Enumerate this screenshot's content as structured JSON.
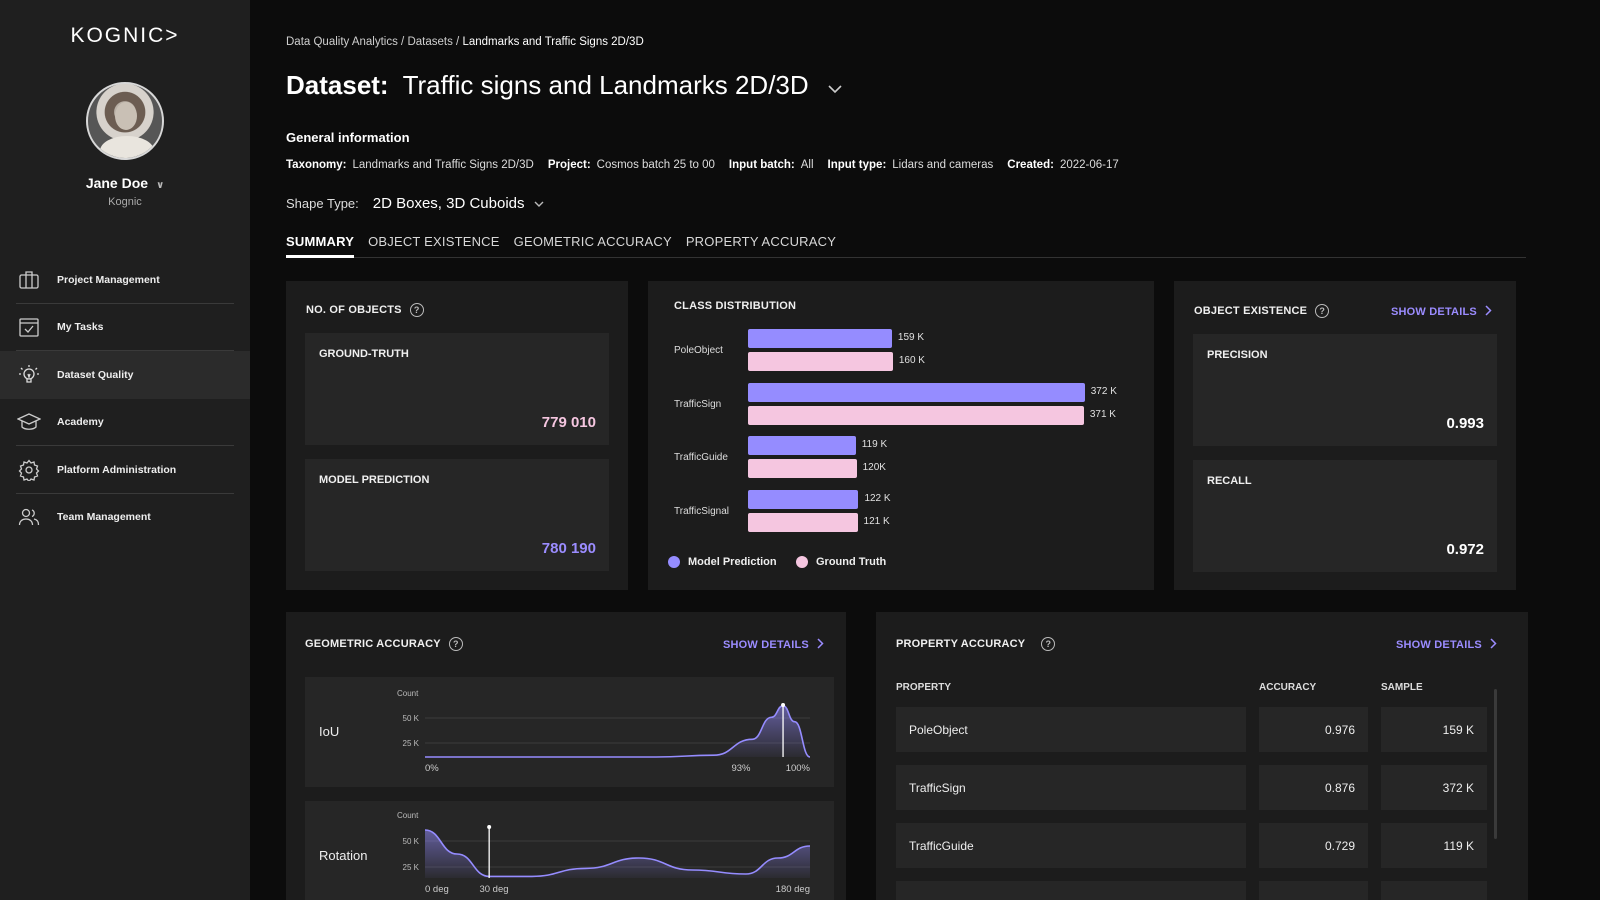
{
  "sidebar": {
    "logo": "KOGNIC>",
    "user": {
      "name": "Jane Doe",
      "org": "Kognic"
    },
    "items": [
      {
        "label": "Project Management",
        "icon": "briefcase-icon"
      },
      {
        "label": "My Tasks",
        "icon": "checklist-icon"
      },
      {
        "label": "Dataset Quality",
        "icon": "lightbulb-icon"
      },
      {
        "label": "Academy",
        "icon": "graduation-cap-icon"
      },
      {
        "label": "Platform Administration",
        "icon": "gear-icon"
      },
      {
        "label": "Team Management",
        "icon": "users-icon"
      }
    ]
  },
  "header": {
    "breadcrumb": {
      "part1": "Data Quality Analytics",
      "sep": " / ",
      "part2": "Datasets",
      "current": "Landmarks and Traffic Signs 2D/3D"
    },
    "title_label": "Dataset:",
    "title_value": "Traffic signs and Landmarks 2D/3D",
    "general_info": "General information",
    "meta": {
      "taxonomy_label": "Taxonomy:",
      "taxonomy": "Landmarks and Traffic Signs 2D/3D",
      "project_label": "Project:",
      "project": "Cosmos batch 25 to 00",
      "input_batch_label": "Input batch:",
      "input_batch": "All",
      "input_type_label": "Input type:",
      "input_type": "Lidars and cameras",
      "created_label": "Created:",
      "created": "2022-06-17"
    },
    "shape_type_label": "Shape Type:",
    "shape_type": "2D Boxes, 3D Cuboids"
  },
  "tabs": [
    "SUMMARY",
    "OBJECT EXISTENCE",
    "GEOMETRIC ACCURACY",
    "PROPERTY ACCURACY"
  ],
  "objects": {
    "title": "NO. OF OBJECTS",
    "ground_truth_label": "GROUND-TRUTH",
    "ground_truth": "779 010",
    "model_prediction_label": "MODEL PREDICTION",
    "model_prediction": "780 190"
  },
  "class_distribution": {
    "title": "CLASS DISTRIBUTION",
    "legend_model": "Model Prediction",
    "legend_ground": "Ground Truth"
  },
  "object_existence": {
    "title": "OBJECT EXISTENCE",
    "show_details": "SHOW DETAILS",
    "precision_label": "PRECISION",
    "precision": "0.993",
    "recall_label": "RECALL",
    "recall": "0.972"
  },
  "geometric": {
    "title": "GEOMETRIC ACCURACY",
    "show_details": "SHOW DETAILS",
    "iou_label": "IoU",
    "rotation_label": "Rotation"
  },
  "property": {
    "title": "PROPERTY ACCURACY",
    "show_details": "SHOW DETAILS",
    "col_property": "PROPERTY",
    "col_accuracy": "ACCURACY",
    "col_sample": "SAMPLE",
    "rows": [
      {
        "property": "PoleObject",
        "accuracy": "0.976",
        "sample": "159 K"
      },
      {
        "property": "TrafficSign",
        "accuracy": "0.876",
        "sample": "372 K"
      },
      {
        "property": "TrafficGuide",
        "accuracy": "0.729",
        "sample": "119 K"
      }
    ]
  },
  "colors": {
    "model": "#958cff",
    "ground": "#f5c6e0",
    "accent": "#9b8cff"
  },
  "chart_data": [
    {
      "type": "bar",
      "title": "CLASS DISTRIBUTION",
      "categories": [
        "PoleObject",
        "TrafficSign",
        "TrafficGuide",
        "TrafficSignal"
      ],
      "series": [
        {
          "name": "Model Prediction",
          "values": [
            159000,
            372000,
            119000,
            122000
          ],
          "labels": [
            "159 K",
            "372 K",
            "119 K",
            "122 K"
          ]
        },
        {
          "name": "Ground Truth",
          "values": [
            160000,
            371000,
            120000,
            121000
          ],
          "labels": [
            "160 K",
            "371 K",
            "120K",
            "121 K"
          ]
        }
      ]
    },
    {
      "type": "area",
      "title": "IoU",
      "ylabel": "Count",
      "yticks": [
        "50 K",
        "25 K"
      ],
      "xticks": [
        "0%",
        "93%",
        "100%"
      ],
      "x": [
        0,
        60,
        75,
        85,
        90,
        93,
        96,
        100
      ],
      "y": [
        0,
        0,
        2000,
        20000,
        45000,
        58000,
        40000,
        0
      ],
      "xlim": [
        0,
        100
      ],
      "ylim": [
        0,
        60000
      ],
      "marker": 93
    },
    {
      "type": "area",
      "title": "Rotation",
      "ylabel": "Count",
      "yticks": [
        "50 K",
        "25 K"
      ],
      "xticks": [
        "0 deg",
        "30 deg",
        "180 deg"
      ],
      "x": [
        0,
        15,
        30,
        50,
        75,
        100,
        125,
        150,
        165,
        180
      ],
      "y": [
        60000,
        30000,
        2000,
        2000,
        12000,
        25000,
        10000,
        5000,
        25000,
        40000
      ],
      "xlim": [
        0,
        180
      ],
      "ylim": [
        0,
        65000
      ],
      "marker": 30
    }
  ]
}
